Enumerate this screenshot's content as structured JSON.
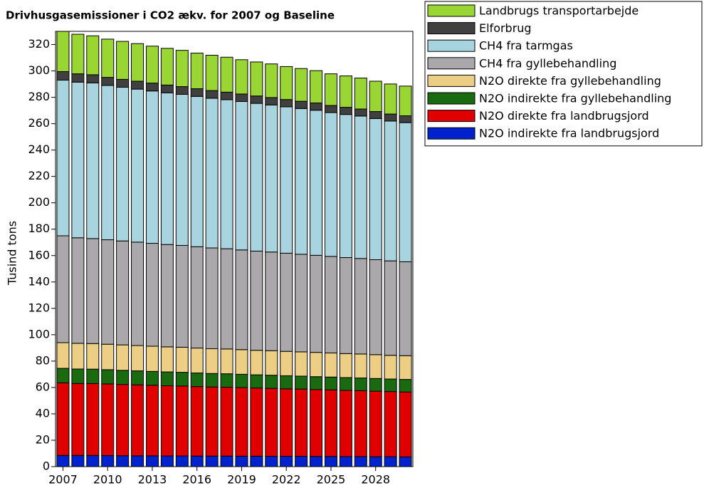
{
  "chart_data": {
    "type": "stacked_bar",
    "title": "Drivhusgasemissioner i CO2 ækv. for 2007 og Baseline",
    "y_label": "Tusind tons",
    "categories": [
      "2007",
      null,
      null,
      "2010",
      null,
      null,
      "2013",
      null,
      null,
      "2016",
      null,
      null,
      "2019",
      null,
      null,
      "2022",
      null,
      null,
      "2025",
      null,
      null,
      "2028",
      null,
      null
    ],
    "ylim": [
      0,
      330
    ],
    "yticks": [
      0,
      20,
      40,
      60,
      80,
      100,
      120,
      140,
      160,
      180,
      200,
      220,
      240,
      260,
      280,
      300,
      320
    ],
    "legend": "right",
    "series": [
      {
        "name": "N2O indirekte fra landbrugsjord",
        "color": "#0022cc",
        "values": [
          8.5,
          8.5,
          8.5,
          8.4,
          8.3,
          8.2,
          8.2,
          8.1,
          8.1,
          8,
          8,
          8,
          7.9,
          7.9,
          7.8,
          7.8,
          7.8,
          7.7,
          7.7,
          7.6,
          7.6,
          7.5,
          7.5,
          7.4
        ]
      },
      {
        "name": "N2O direkte fra landbrugsjord",
        "color": "#e00000",
        "values": [
          55,
          54.5,
          54.5,
          54.3,
          54,
          53.8,
          53.5,
          53.2,
          53,
          52.7,
          52.4,
          52.2,
          52,
          51.7,
          51.5,
          51.2,
          51,
          50.7,
          50.5,
          50.2,
          50,
          49.7,
          49.4,
          49.2
        ]
      },
      {
        "name": "N2O indirekte fra gyllebehandling",
        "color": "#1a6b0f",
        "values": [
          11,
          11,
          10.9,
          10.8,
          10.7,
          10.6,
          10.5,
          10.5,
          10.4,
          10.3,
          10.2,
          10.2,
          10.1,
          10,
          10,
          9.9,
          9.8,
          9.8,
          9.7,
          9.7,
          9.6,
          9.6,
          9.5,
          9.5
        ]
      },
      {
        "name": "N2O direkte fra gyllebehandling",
        "color": "#ecce85",
        "values": [
          19.5,
          19.5,
          19.4,
          19.3,
          19.3,
          19.2,
          19.1,
          19,
          19,
          18.9,
          18.8,
          18.8,
          18.7,
          18.6,
          18.6,
          18.5,
          18.4,
          18.4,
          18.3,
          18.2,
          18.2,
          18.1,
          18,
          18
        ]
      },
      {
        "name": "CH4 fra gyllebehandling",
        "color": "#aaa8aa",
        "values": [
          81,
          80,
          79.6,
          79.2,
          78.8,
          78.4,
          78,
          77.6,
          77.2,
          76.8,
          76.4,
          76,
          75.6,
          75.2,
          74.8,
          74.4,
          74,
          73.6,
          73.2,
          72.8,
          72.4,
          72,
          71.6,
          71.2
        ]
      },
      {
        "name": "CH4 fra tarmgas",
        "color": "#a8d4e0",
        "values": [
          118,
          118,
          118,
          117,
          116.5,
          116,
          115.5,
          115,
          114.5,
          114,
          113.5,
          113,
          112.5,
          112,
          111.5,
          111,
          110.5,
          110,
          109,
          108.5,
          108,
          107,
          106,
          105.5
        ]
      },
      {
        "name": "Elforbrug",
        "color": "#404040",
        "values": [
          6.5,
          6.3,
          6.2,
          6.1,
          6,
          6,
          6,
          5.9,
          5.9,
          5.8,
          5.8,
          5.7,
          5.7,
          5.6,
          5.6,
          5.5,
          5.5,
          5.5,
          5.4,
          5.4,
          5.3,
          5.3,
          5.3,
          5.2
        ]
      },
      {
        "name": "Landbrugs transportarbejde",
        "color": "#99d633",
        "values": [
          30.5,
          30,
          29.5,
          29,
          28.8,
          28.5,
          28,
          27.8,
          27.5,
          27,
          26.8,
          26.5,
          26,
          25.8,
          25.5,
          25,
          24.8,
          24.5,
          24,
          23.8,
          23.5,
          23,
          22.8,
          22.5
        ]
      }
    ]
  }
}
